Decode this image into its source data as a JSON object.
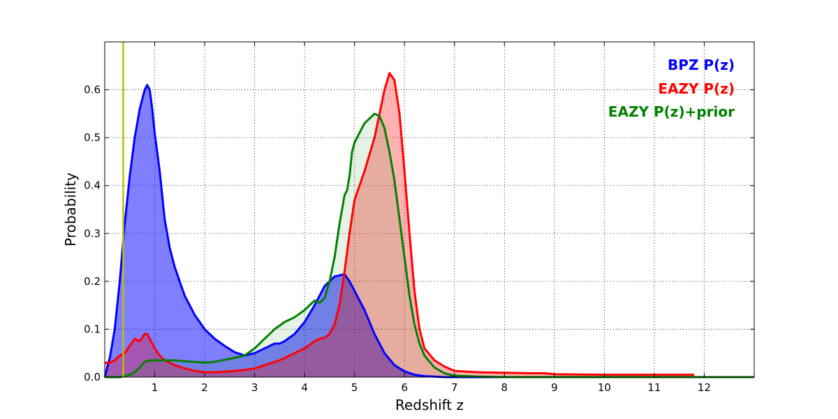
{
  "chart_data": {
    "type": "area",
    "title": "",
    "xlabel": "Redshift z",
    "ylabel": "Probability",
    "xlim": [
      0,
      13
    ],
    "ylim": [
      0,
      0.7
    ],
    "xticks": [
      1,
      2,
      3,
      4,
      5,
      6,
      7,
      8,
      9,
      10,
      11,
      12
    ],
    "yticks": [
      0.0,
      0.1,
      0.2,
      0.3,
      0.4,
      0.5,
      0.6
    ],
    "ytick_labels": [
      "0.0",
      "0.1",
      "0.2",
      "0.3",
      "0.4",
      "0.5",
      "0.6"
    ],
    "grid": true,
    "legend_position": "top-right",
    "vline": {
      "x": 0.37,
      "color": "#bfbf00"
    },
    "series": [
      {
        "name": "BPZ P(z)",
        "color": "#0000ff",
        "fill": "#0000ff",
        "fill_opacity": 0.5,
        "x": [
          0.0,
          0.1,
          0.2,
          0.3,
          0.4,
          0.5,
          0.6,
          0.7,
          0.8,
          0.85,
          0.9,
          0.95,
          1.0,
          1.1,
          1.2,
          1.3,
          1.4,
          1.5,
          1.6,
          1.7,
          1.8,
          1.9,
          2.0,
          2.2,
          2.4,
          2.6,
          2.8,
          3.0,
          3.2,
          3.4,
          3.5,
          3.6,
          3.8,
          4.0,
          4.2,
          4.4,
          4.6,
          4.8,
          4.9,
          5.0,
          5.2,
          5.4,
          5.6,
          5.8,
          6.0,
          6.2,
          6.4,
          6.6,
          6.8,
          7.0,
          7.5,
          8.0,
          9.0,
          10.0,
          11.0,
          12.0,
          13.0
        ],
        "y": [
          0.0,
          0.04,
          0.1,
          0.2,
          0.32,
          0.42,
          0.5,
          0.56,
          0.6,
          0.61,
          0.6,
          0.56,
          0.51,
          0.43,
          0.33,
          0.27,
          0.23,
          0.2,
          0.17,
          0.15,
          0.13,
          0.115,
          0.1,
          0.08,
          0.065,
          0.052,
          0.045,
          0.05,
          0.06,
          0.07,
          0.07,
          0.075,
          0.09,
          0.115,
          0.15,
          0.19,
          0.21,
          0.215,
          0.2,
          0.18,
          0.14,
          0.09,
          0.05,
          0.025,
          0.012,
          0.005,
          0.002,
          0.001,
          0.0,
          0.0,
          0.0,
          0.0,
          0.0,
          0.0,
          0.0,
          0.0,
          0.0
        ]
      },
      {
        "name": "EAZY P(z)",
        "color": "#ff0000",
        "fill": "#ff0000",
        "fill_opacity": 0.3,
        "x": [
          0.0,
          0.1,
          0.2,
          0.3,
          0.4,
          0.5,
          0.6,
          0.7,
          0.8,
          0.85,
          0.9,
          1.0,
          1.1,
          1.2,
          1.4,
          1.6,
          1.8,
          2.0,
          2.2,
          2.5,
          2.8,
          3.0,
          3.2,
          3.5,
          3.8,
          4.0,
          4.2,
          4.3,
          4.4,
          4.5,
          4.6,
          4.7,
          4.8,
          4.9,
          5.0,
          5.2,
          5.4,
          5.5,
          5.6,
          5.7,
          5.8,
          5.9,
          6.0,
          6.1,
          6.2,
          6.3,
          6.4,
          6.6,
          6.8,
          7.0,
          7.5,
          8.0,
          8.5,
          8.8,
          9.0,
          10.0,
          11.0,
          11.8
        ],
        "y": [
          0.03,
          0.03,
          0.035,
          0.045,
          0.05,
          0.065,
          0.08,
          0.075,
          0.09,
          0.09,
          0.08,
          0.06,
          0.045,
          0.035,
          0.025,
          0.018,
          0.013,
          0.01,
          0.01,
          0.012,
          0.015,
          0.018,
          0.025,
          0.035,
          0.05,
          0.06,
          0.075,
          0.08,
          0.082,
          0.09,
          0.11,
          0.15,
          0.22,
          0.3,
          0.37,
          0.43,
          0.5,
          0.55,
          0.6,
          0.635,
          0.62,
          0.55,
          0.43,
          0.3,
          0.18,
          0.1,
          0.06,
          0.035,
          0.022,
          0.013,
          0.01,
          0.009,
          0.008,
          0.008,
          0.006,
          0.005,
          0.005,
          0.005
        ]
      },
      {
        "name": "EAZY P(z)+prior",
        "color": "#008000",
        "fill": "#008000",
        "fill_opacity": 0.1,
        "x": [
          0.0,
          0.3,
          0.5,
          0.6,
          0.7,
          0.8,
          0.9,
          1.0,
          1.2,
          1.4,
          1.6,
          1.8,
          2.0,
          2.2,
          2.5,
          2.8,
          3.0,
          3.2,
          3.4,
          3.6,
          3.8,
          4.0,
          4.1,
          4.2,
          4.3,
          4.4,
          4.5,
          4.6,
          4.7,
          4.8,
          4.85,
          4.9,
          4.95,
          5.0,
          5.1,
          5.2,
          5.3,
          5.4,
          5.5,
          5.6,
          5.7,
          5.8,
          5.9,
          6.0,
          6.1,
          6.2,
          6.3,
          6.4,
          6.6,
          6.8,
          7.0,
          7.5,
          8.0,
          9.0,
          10.0,
          11.0,
          12.0,
          13.0
        ],
        "y": [
          0.0,
          0.0,
          0.005,
          0.01,
          0.02,
          0.032,
          0.035,
          0.035,
          0.035,
          0.035,
          0.033,
          0.032,
          0.03,
          0.032,
          0.038,
          0.045,
          0.06,
          0.08,
          0.1,
          0.115,
          0.125,
          0.14,
          0.15,
          0.16,
          0.155,
          0.165,
          0.2,
          0.25,
          0.32,
          0.38,
          0.39,
          0.42,
          0.47,
          0.49,
          0.51,
          0.53,
          0.54,
          0.55,
          0.545,
          0.52,
          0.47,
          0.41,
          0.33,
          0.25,
          0.17,
          0.11,
          0.07,
          0.045,
          0.02,
          0.008,
          0.003,
          0.001,
          0.0,
          0.0,
          0.0,
          0.0,
          0.0,
          0.0
        ]
      }
    ]
  }
}
